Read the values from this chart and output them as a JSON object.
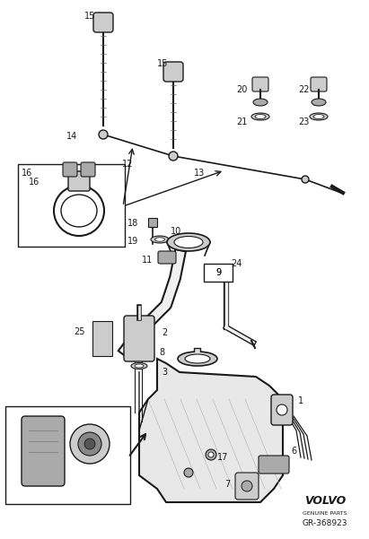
{
  "bg_color": "#ffffff",
  "fig_width": 4.11,
  "fig_height": 6.01,
  "dpi": 100,
  "volvo_text": "VOLVO",
  "volvo_sub": "GENUINE PARTS",
  "part_number": "GR-368923",
  "dark": "#1a1a1a",
  "gray_light": "#cccccc",
  "gray_med": "#aaaaaa",
  "gray_dark": "#888888"
}
